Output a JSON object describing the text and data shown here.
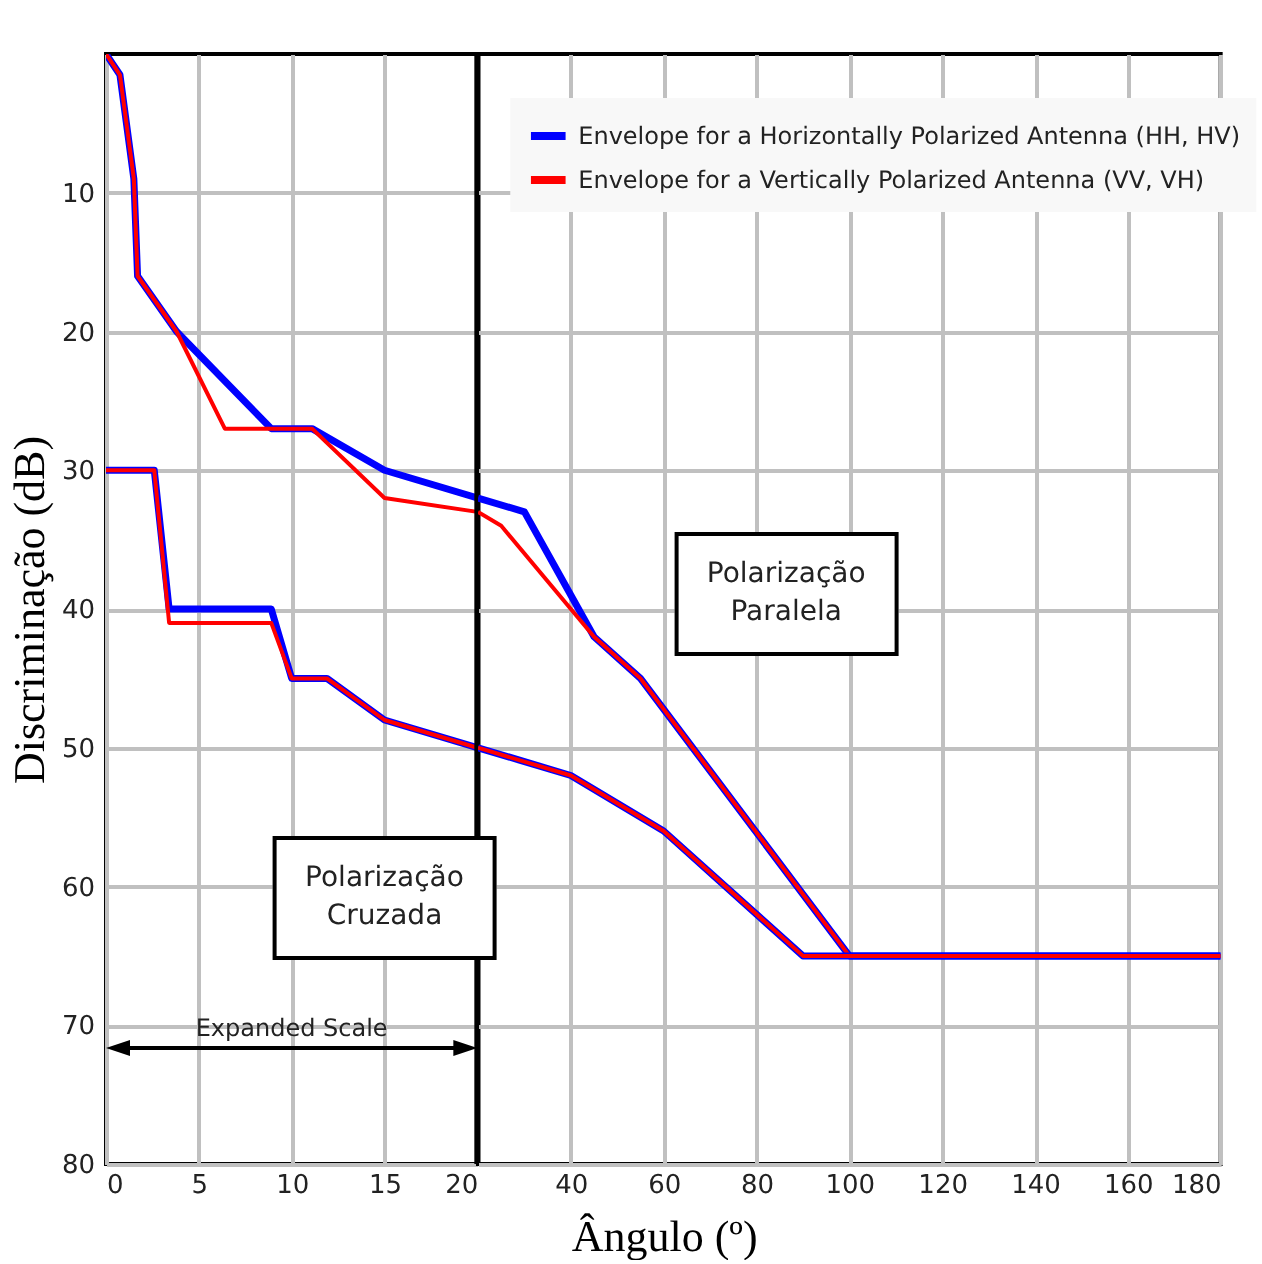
{
  "chart_data": [
    {
      "type": "line",
      "ylabel": "Discriminação (dB)",
      "xlim": [
        0,
        20
      ],
      "xticks": [
        0,
        5,
        10,
        15,
        20
      ],
      "ylim": [
        80,
        0
      ],
      "yticks": [
        10,
        20,
        30,
        40,
        50,
        60,
        70,
        80
      ],
      "grid": true,
      "series": [
        {
          "color": "#0000ff",
          "x": [
            0,
            0.75,
            1.5,
            1.7,
            3.8,
            8.9,
            11.1,
            15,
            20
          ],
          "values": [
            0,
            1.5,
            9,
            16,
            20,
            27,
            27,
            30,
            32
          ]
        },
        {
          "color": "#ff0000",
          "x": [
            0,
            0.75,
            1.5,
            1.7,
            3.8,
            6.4,
            11.1,
            15,
            20
          ],
          "values": [
            0,
            1.5,
            9,
            16,
            20,
            27,
            27,
            32,
            33
          ]
        },
        {
          "color": "#0000ff",
          "x": [
            0,
            2.6,
            3.4,
            8.9,
            10,
            11.9,
            15,
            20
          ],
          "values": [
            30,
            30,
            40,
            40,
            45,
            45,
            48,
            50
          ]
        },
        {
          "color": "#ff0000",
          "x": [
            0,
            2.6,
            3.4,
            8.9,
            10,
            11.9,
            15,
            20
          ],
          "values": [
            30,
            30,
            41,
            41,
            45,
            45,
            48,
            50
          ]
        }
      ],
      "ref_lines": [
        {
          "axis": "x",
          "value": 20,
          "color": "#000000"
        }
      ],
      "annotations": [
        "Polarização\nCruzada",
        "Expanded Scale"
      ]
    },
    {
      "type": "line",
      "xlabel": "Ângulo (º)",
      "xlim": [
        20,
        180
      ],
      "xticks": [
        40,
        60,
        80,
        100,
        120,
        140,
        160,
        180
      ],
      "ylim": [
        80,
        0
      ],
      "yticks": [
        10,
        20,
        30,
        40,
        50,
        60,
        70,
        80
      ],
      "grid": true,
      "tick_labels": "x",
      "legend": "top right",
      "series": [
        {
          "name": "Envelope for a Horizontally Polarized Antenna (HH, HV)",
          "color": "#0000ff",
          "x": [
            20,
            30,
            45,
            55,
            100,
            180
          ],
          "values": [
            32,
            33,
            42,
            45,
            65,
            65
          ]
        },
        {
          "name": "Envelope for a Vertically Polarized Antenna (VV, VH)",
          "color": "#ff0000",
          "x": [
            20,
            25,
            45,
            55,
            100,
            180
          ],
          "values": [
            33,
            34,
            42,
            45,
            65,
            65
          ]
        },
        {
          "color": "#0000ff",
          "x": [
            20,
            40,
            60,
            90,
            180
          ],
          "values": [
            50,
            52,
            56,
            65,
            65
          ]
        },
        {
          "color": "#ff0000",
          "x": [
            20,
            40,
            60,
            90,
            180
          ],
          "values": [
            50,
            52,
            56,
            65,
            65
          ]
        }
      ],
      "annotations": [
        "Polarização\nParalela"
      ]
    }
  ]
}
